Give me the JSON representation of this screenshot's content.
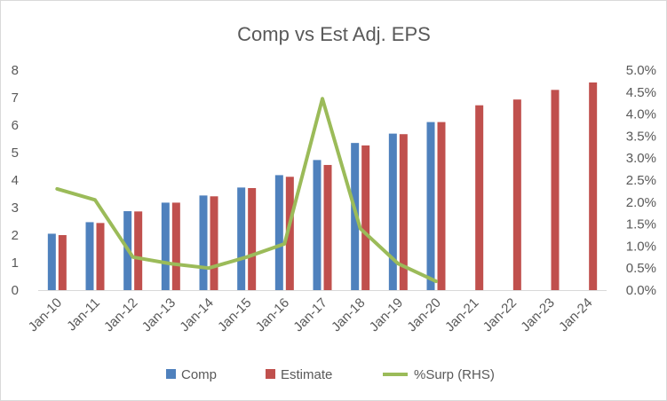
{
  "chart_data": {
    "type": "bar",
    "title": "Comp vs Est Adj. EPS",
    "categories": [
      "Jan-10",
      "Jan-11",
      "Jan-12",
      "Jan-13",
      "Jan-14",
      "Jan-15",
      "Jan-16",
      "Jan-17",
      "Jan-18",
      "Jan-19",
      "Jan-20",
      "Jan-21",
      "Jan-22",
      "Jan-23",
      "Jan-24"
    ],
    "series": [
      {
        "name": "Comp",
        "kind": "bar",
        "axis": "left",
        "color": "#4f81bd",
        "values": [
          2.05,
          2.47,
          2.87,
          3.18,
          3.44,
          3.73,
          4.18,
          4.73,
          5.35,
          5.69,
          6.11,
          null,
          null,
          null,
          null
        ]
      },
      {
        "name": "Estimate",
        "kind": "bar",
        "axis": "left",
        "color": "#c0504d",
        "values": [
          2.0,
          2.44,
          2.86,
          3.18,
          3.41,
          3.71,
          4.12,
          4.55,
          5.26,
          5.67,
          6.11,
          6.72,
          6.93,
          7.28,
          7.55
        ]
      },
      {
        "name": "%Surp (RHS)",
        "kind": "line",
        "axis": "right",
        "color": "#9bbb59",
        "values": [
          2.3,
          2.05,
          0.75,
          0.6,
          0.5,
          0.75,
          1.05,
          4.35,
          1.4,
          0.6,
          0.2,
          null,
          null,
          null,
          null
        ]
      }
    ],
    "left_axis": {
      "min": 0,
      "max": 8,
      "ticks": [
        "0",
        "1",
        "2",
        "3",
        "4",
        "5",
        "6",
        "7",
        "8"
      ]
    },
    "right_axis": {
      "min": 0,
      "max": 5,
      "unit": "%",
      "ticks": [
        "0.0%",
        "0.5%",
        "1.0%",
        "1.5%",
        "2.0%",
        "2.5%",
        "3.0%",
        "3.5%",
        "4.0%",
        "4.5%",
        "5.0%"
      ]
    },
    "grid": false,
    "legend_position": "bottom"
  }
}
